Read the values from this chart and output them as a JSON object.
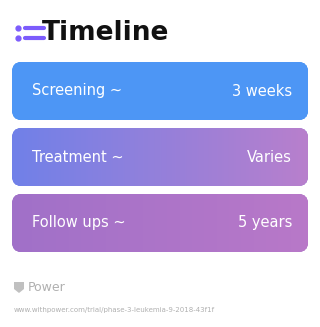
{
  "title": "Timeline",
  "background_color": "#ffffff",
  "rows": [
    {
      "label": "Screening ~",
      "value": "3 weeks",
      "color_left": "#4d96f5",
      "color_right": "#4d96f5"
    },
    {
      "label": "Treatment ~",
      "value": "Varies",
      "color_left": "#6b8de8",
      "color_right": "#b07fcc"
    },
    {
      "label": "Follow ups ~",
      "value": "5 years",
      "color_left": "#a070c8",
      "color_right": "#b070c8"
    }
  ],
  "watermark": "Power",
  "url": "www.withpower.com/trial/phase-3-leukemia-9-2018-43f1f",
  "title_fontsize": 19,
  "label_fontsize": 10.5,
  "value_fontsize": 10.5,
  "icon_color": "#7c5cfc",
  "watermark_color": "#b0b0b0",
  "url_color": "#b0b0b0"
}
